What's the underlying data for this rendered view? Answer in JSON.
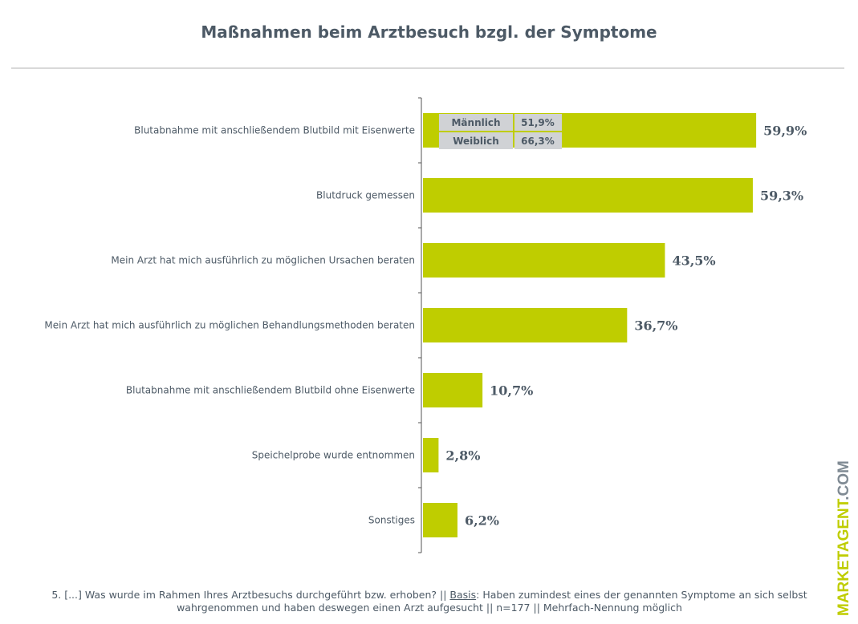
{
  "chart_data": {
    "type": "bar",
    "orientation": "horizontal",
    "title": "Maßnahmen beim Arztbesuch bzgl. der Symptome",
    "categories": [
      "Blutabnahme mit anschließendem Blutbild mit Eisenwerte",
      "Blutdruck gemessen",
      "Mein Arzt hat mich ausführlich zu möglichen Ursachen beraten",
      "Mein Arzt hat mich ausführlich zu möglichen Behandlungsmethoden beraten",
      "Blutabnahme mit anschließendem Blutbild ohne Eisenwerte",
      "Speichelprobe wurde entnommen",
      "Sonstiges"
    ],
    "values": [
      59.9,
      59.3,
      43.5,
      36.7,
      10.7,
      2.8,
      6.2
    ],
    "value_labels": [
      "59,9%",
      "59,3%",
      "43,5%",
      "36,7%",
      "10,7%",
      "2,8%",
      "6,2%"
    ],
    "xlim": [
      0,
      100
    ],
    "grid": false,
    "bar_color": "#bfcd00",
    "annotation": {
      "rows": [
        {
          "label": "Männlich",
          "value": "51,9%"
        },
        {
          "label": "Weiblich",
          "value": "66,3%"
        }
      ]
    }
  },
  "footnote": {
    "part1": "5. [...] Was wurde im Rahmen Ihres Arztbesuchs durchgeführt bzw. erhoben? || ",
    "basis": "Basis",
    "part2": ": Haben zumindest eines der genannten Symptome an sich selbst wahrgenommen und haben deswegen einen Arzt aufgesucht || n=177 || Mehrfach-Nennung möglich"
  },
  "logo": {
    "main": "MARKETAGENT",
    "suffix": ".COM"
  }
}
